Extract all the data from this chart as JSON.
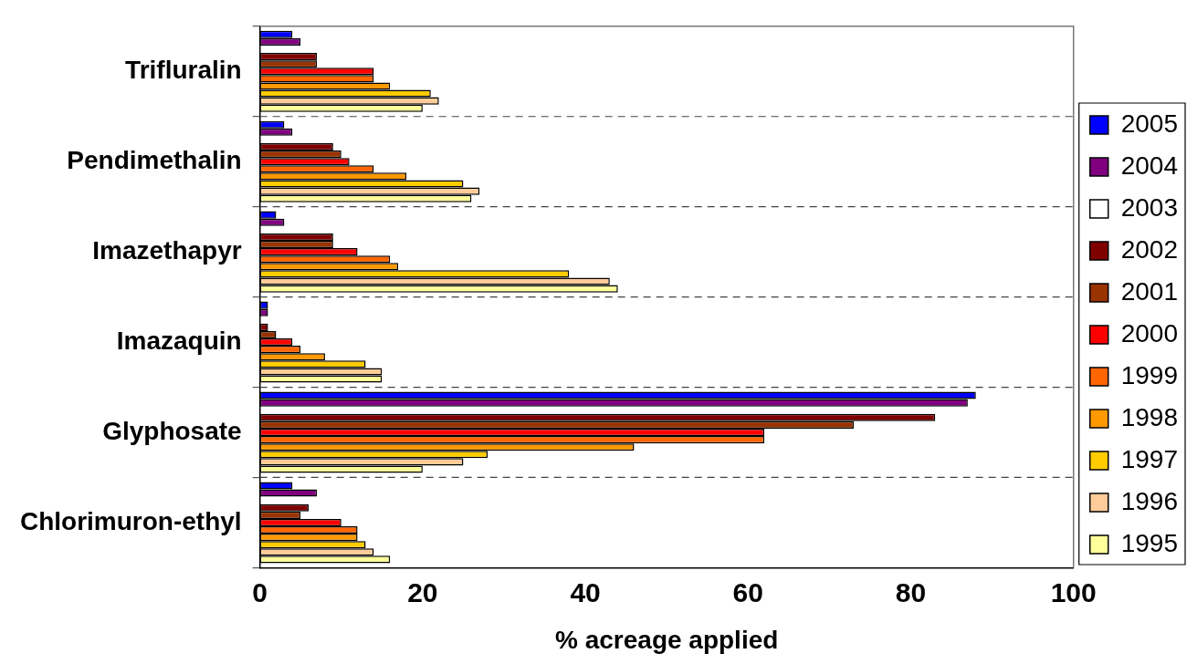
{
  "chart_data": {
    "type": "bar",
    "orientation": "horizontal",
    "xlabel": "% acreage applied",
    "categories": [
      "Trifluralin",
      "Pendimethalin",
      "Imazethapyr",
      "Imazaquin",
      "Glyphosate",
      "Chlorimuron-ethyl"
    ],
    "series": [
      {
        "name": "2005",
        "color": "#0000ff",
        "values": [
          4,
          3,
          2,
          1,
          88,
          4
        ]
      },
      {
        "name": "2004",
        "color": "#800080",
        "values": [
          5,
          4,
          3,
          1,
          87,
          7
        ]
      },
      {
        "name": "2003",
        "color": "#ffffff",
        "values": [
          null,
          null,
          null,
          null,
          null,
          null
        ]
      },
      {
        "name": "2002",
        "color": "#800000",
        "values": [
          7,
          9,
          9,
          1,
          83,
          6
        ]
      },
      {
        "name": "2001",
        "color": "#993300",
        "values": [
          7,
          10,
          9,
          2,
          73,
          5
        ]
      },
      {
        "name": "2000",
        "color": "#ff0000",
        "values": [
          14,
          11,
          12,
          4,
          62,
          10
        ]
      },
      {
        "name": "1999",
        "color": "#ff6600",
        "values": [
          14,
          14,
          16,
          5,
          62,
          12
        ]
      },
      {
        "name": "1998",
        "color": "#ff9900",
        "values": [
          16,
          18,
          17,
          8,
          46,
          12
        ]
      },
      {
        "name": "1997",
        "color": "#ffcc00",
        "values": [
          21,
          25,
          38,
          13,
          28,
          13
        ]
      },
      {
        "name": "1996",
        "color": "#ffcc99",
        "values": [
          22,
          27,
          43,
          15,
          25,
          14
        ]
      },
      {
        "name": "1995",
        "color": "#ffff99",
        "values": [
          20,
          26,
          44,
          15,
          20,
          16
        ]
      }
    ],
    "xlim": [
      0,
      100
    ],
    "xticks": [
      0,
      20,
      40,
      60,
      80,
      100
    ],
    "grid": "y",
    "legend": "right"
  }
}
